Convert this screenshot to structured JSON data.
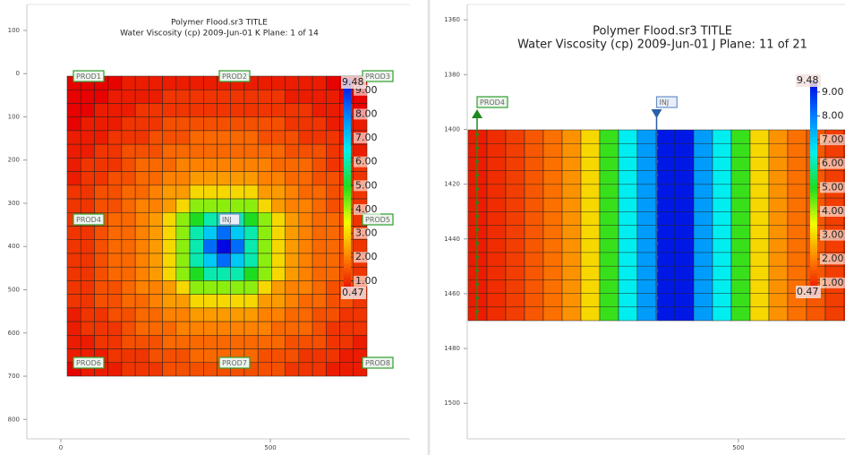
{
  "chart_data": [
    {
      "type": "heatmap",
      "title": "Polymer Flood.sr3 TITLE",
      "subtitle": "Water Viscosity (cp)  2009-Jun-01   K Plane: 1 of 14",
      "xlim": [
        -81,
        833
      ],
      "xticks": [
        0,
        500
      ],
      "ylim": [
        -160,
        845
      ],
      "yticks": [
        {
          "value": -100,
          "label": "100"
        },
        0,
        100,
        200,
        300,
        400,
        500,
        600,
        700,
        800
      ],
      "zlim": [
        0.47,
        9.48
      ],
      "zticks": [
        {
          "value": 9,
          "label": "9.00"
        },
        {
          "value": 8,
          "label": "8.00"
        },
        {
          "value": 7,
          "label": "7.00"
        },
        {
          "value": 6,
          "label": "6.00"
        },
        {
          "value": 5,
          "label": "5.00"
        },
        {
          "value": 4,
          "label": "4.00"
        },
        {
          "value": 3,
          "label": "3.00"
        },
        {
          "value": 2,
          "label": "2.00"
        },
        {
          "value": 1,
          "label": "1.00"
        }
      ],
      "colormap": [
        "#e60000",
        "#ff7f00",
        "#f2ff00",
        "#1fdc1f",
        "#00f0f0",
        "#0080ff",
        "#0000e0"
      ],
      "wells": [
        "PROD1",
        "PROD2",
        "PROD3",
        "PROD4",
        "INJ",
        "PROD5",
        "PROD6",
        "PROD7",
        "PROD8"
      ],
      "z": [
        [
          0.5,
          0.5,
          0.5,
          0.5,
          0.8,
          0.8,
          0.8,
          0.8,
          0.8,
          0.8,
          0.8,
          0.8,
          0.8,
          0.8,
          0.8,
          0.8,
          0.8,
          0.8,
          0.8,
          0.5,
          0.5,
          0.5
        ],
        [
          0.5,
          0.5,
          0.5,
          0.8,
          0.8,
          0.8,
          0.8,
          1.1,
          1.1,
          1.1,
          1.1,
          1.1,
          1.1,
          1.1,
          1.1,
          1.1,
          0.8,
          0.8,
          0.8,
          0.8,
          0.5,
          0.5
        ],
        [
          0.5,
          0.5,
          0.8,
          0.8,
          0.8,
          1.1,
          1.1,
          1.1,
          1.1,
          1.1,
          1.1,
          1.1,
          1.1,
          1.1,
          1.1,
          1.1,
          1.1,
          1.1,
          0.8,
          0.8,
          0.8,
          0.5
        ],
        [
          0.5,
          0.8,
          0.8,
          0.8,
          1.1,
          1.1,
          1.1,
          1.4,
          1.4,
          1.4,
          1.4,
          1.4,
          1.4,
          1.4,
          1.4,
          1.4,
          1.1,
          1.1,
          1.1,
          0.8,
          0.8,
          0.8
        ],
        [
          0.8,
          0.8,
          0.8,
          1.1,
          1.1,
          1.1,
          1.4,
          1.4,
          1.4,
          1.7,
          1.7,
          1.7,
          1.7,
          1.7,
          1.4,
          1.4,
          1.4,
          1.1,
          1.1,
          1.1,
          0.8,
          0.8
        ],
        [
          0.8,
          0.8,
          1.1,
          1.1,
          1.4,
          1.4,
          1.4,
          1.7,
          1.7,
          1.7,
          1.7,
          1.7,
          1.7,
          1.7,
          1.7,
          1.7,
          1.4,
          1.4,
          1.4,
          1.1,
          1.1,
          0.8
        ],
        [
          0.8,
          1.1,
          1.1,
          1.1,
          1.4,
          1.7,
          1.7,
          1.7,
          2.0,
          2.0,
          2.0,
          2.0,
          2.0,
          2.0,
          2.0,
          1.7,
          1.7,
          1.7,
          1.4,
          1.1,
          1.1,
          1.1
        ],
        [
          0.8,
          1.1,
          1.1,
          1.4,
          1.4,
          1.7,
          1.7,
          2.0,
          2.0,
          2.3,
          2.3,
          2.3,
          2.3,
          2.3,
          2.0,
          2.0,
          1.7,
          1.7,
          1.4,
          1.4,
          1.1,
          1.1
        ],
        [
          1.1,
          1.1,
          1.4,
          1.4,
          1.7,
          1.7,
          2.0,
          2.3,
          2.3,
          3.0,
          3.0,
          3.0,
          3.0,
          3.0,
          2.3,
          2.3,
          2.0,
          1.7,
          1.7,
          1.4,
          1.4,
          1.1
        ],
        [
          1.1,
          1.1,
          1.4,
          1.4,
          1.7,
          2.0,
          2.0,
          2.3,
          3.0,
          4.2,
          4.2,
          4.2,
          4.2,
          4.2,
          3.0,
          2.3,
          2.0,
          2.0,
          1.7,
          1.4,
          1.4,
          1.1
        ],
        [
          1.1,
          1.1,
          1.4,
          1.7,
          1.7,
          2.0,
          2.3,
          3.0,
          4.2,
          5.0,
          6.0,
          6.0,
          6.0,
          5.0,
          4.2,
          3.0,
          2.3,
          2.0,
          1.7,
          1.7,
          1.4,
          1.1
        ],
        [
          1.1,
          1.1,
          1.4,
          1.7,
          1.7,
          2.0,
          2.3,
          3.0,
          4.2,
          6.0,
          7.0,
          8.2,
          7.0,
          6.0,
          4.2,
          3.0,
          2.3,
          2.0,
          1.7,
          1.7,
          1.4,
          1.1
        ],
        [
          1.1,
          1.1,
          1.4,
          1.7,
          1.7,
          2.0,
          2.3,
          3.0,
          4.2,
          6.0,
          8.2,
          9.4,
          8.2,
          6.0,
          4.2,
          3.0,
          2.3,
          2.0,
          1.7,
          1.7,
          1.4,
          1.1
        ],
        [
          1.1,
          1.1,
          1.4,
          1.7,
          1.7,
          2.0,
          2.3,
          3.0,
          4.2,
          6.0,
          7.0,
          8.2,
          7.0,
          6.0,
          4.2,
          3.0,
          2.3,
          2.0,
          1.7,
          1.7,
          1.4,
          1.1
        ],
        [
          1.1,
          1.1,
          1.4,
          1.7,
          1.7,
          2.0,
          2.3,
          3.0,
          4.2,
          5.0,
          6.0,
          6.0,
          6.0,
          5.0,
          4.2,
          3.0,
          2.3,
          2.0,
          1.7,
          1.7,
          1.4,
          1.1
        ],
        [
          1.1,
          1.1,
          1.4,
          1.4,
          1.7,
          2.0,
          2.0,
          2.3,
          3.0,
          4.2,
          4.2,
          4.2,
          4.2,
          4.2,
          3.0,
          2.3,
          2.0,
          2.0,
          1.7,
          1.4,
          1.4,
          1.1
        ],
        [
          1.1,
          1.1,
          1.4,
          1.4,
          1.7,
          1.7,
          2.0,
          2.3,
          2.3,
          3.0,
          3.0,
          3.0,
          3.0,
          3.0,
          2.3,
          2.3,
          2.0,
          1.7,
          1.7,
          1.4,
          1.4,
          1.1
        ],
        [
          0.8,
          1.1,
          1.1,
          1.4,
          1.4,
          1.7,
          1.7,
          2.0,
          2.0,
          2.3,
          2.3,
          2.3,
          2.3,
          2.3,
          2.0,
          2.0,
          1.7,
          1.7,
          1.4,
          1.4,
          1.1,
          1.1
        ],
        [
          0.8,
          1.1,
          1.1,
          1.1,
          1.4,
          1.7,
          1.7,
          1.7,
          2.0,
          2.0,
          2.0,
          2.0,
          2.0,
          2.0,
          2.0,
          1.7,
          1.7,
          1.7,
          1.4,
          1.1,
          1.1,
          1.1
        ],
        [
          0.8,
          0.8,
          1.1,
          1.1,
          1.4,
          1.4,
          1.4,
          1.7,
          1.7,
          1.7,
          1.7,
          1.7,
          1.7,
          1.7,
          1.7,
          1.7,
          1.4,
          1.4,
          1.4,
          1.1,
          1.1,
          0.8
        ],
        [
          0.8,
          0.8,
          0.8,
          1.1,
          1.1,
          1.1,
          1.4,
          1.4,
          1.4,
          1.7,
          1.7,
          1.7,
          1.7,
          1.7,
          1.4,
          1.4,
          1.4,
          1.1,
          1.1,
          1.1,
          0.8,
          0.8
        ],
        [
          0.5,
          0.8,
          0.8,
          0.8,
          1.1,
          1.1,
          1.1,
          1.4,
          1.4,
          1.4,
          1.4,
          1.4,
          1.4,
          1.4,
          1.4,
          1.4,
          1.1,
          1.1,
          1.1,
          0.8,
          0.8,
          0.8
        ]
      ]
    },
    {
      "type": "heatmap",
      "title": "Polymer Flood.sr3 TITLE",
      "subtitle": "Water Viscosity (cp)  2009-Jun-01   J Plane: 11 of 21",
      "xlim": [
        -146,
        754
      ],
      "xticks": [
        500
      ],
      "ylim": [
        1354.4,
        1513
      ],
      "yticks": [
        1360,
        1380,
        1400,
        1420,
        1440,
        1460,
        1480,
        1500
      ],
      "zlim": [
        0.47,
        9.48
      ],
      "zticks": [
        {
          "value": 9,
          "label": "9.00"
        },
        {
          "value": 8,
          "label": "8.00"
        },
        {
          "value": 7,
          "label": "7.00"
        },
        {
          "value": 6,
          "label": "6.00"
        },
        {
          "value": 5,
          "label": "5.00"
        },
        {
          "value": 4,
          "label": "4.00"
        },
        {
          "value": 3,
          "label": "3.00"
        },
        {
          "value": 2,
          "label": "2.00"
        },
        {
          "value": 1,
          "label": "1.00"
        }
      ],
      "colormap": [
        "#e60000",
        "#ff7f00",
        "#f2ff00",
        "#1fdc1f",
        "#00f0f0",
        "#0080ff",
        "#0000e0"
      ],
      "wells": [
        "PROD4",
        "INJ"
      ],
      "column_values": [
        0.8,
        1.0,
        1.2,
        1.5,
        1.8,
        2.2,
        3.0,
        4.8,
        6.5,
        7.6,
        9.2,
        9.2,
        7.6,
        6.5,
        4.8,
        3.0,
        2.2,
        1.8,
        1.5,
        1.2,
        1.0
      ]
    }
  ]
}
